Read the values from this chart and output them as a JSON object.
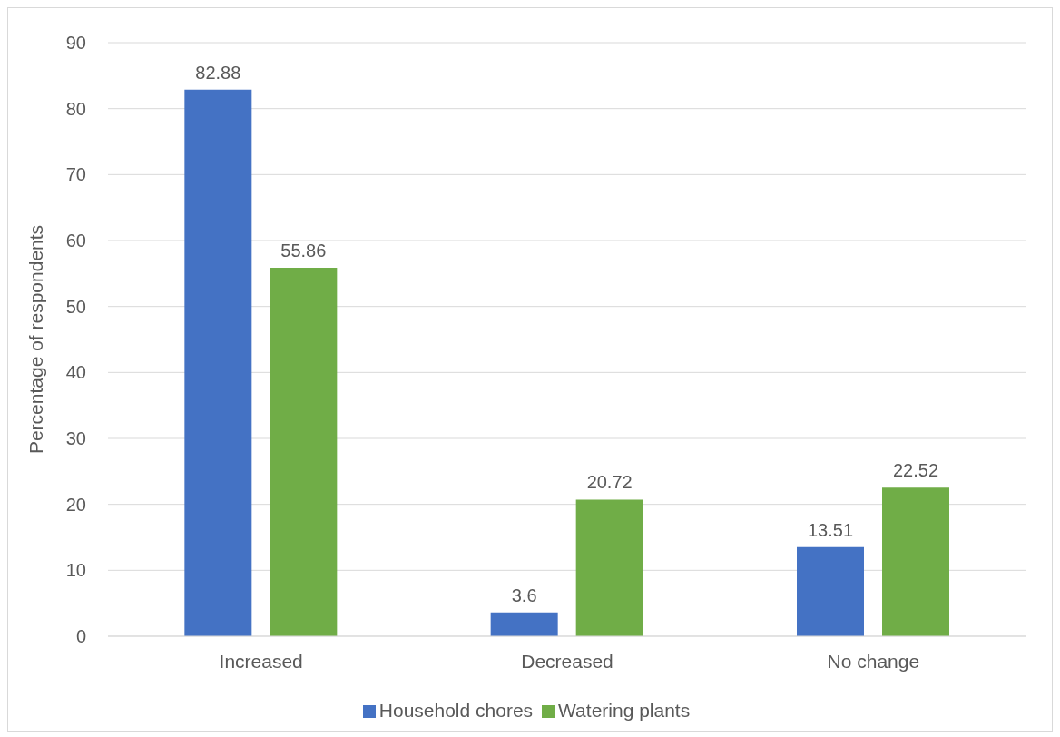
{
  "chart_data": {
    "type": "bar",
    "ylabel": "Percentage of respondents",
    "categories": [
      "Increased",
      "Decreased",
      "No change"
    ],
    "series": [
      {
        "name": "Household chores",
        "color": "#4472c4",
        "values": [
          82.88,
          3.6,
          13.51
        ]
      },
      {
        "name": "Watering plants",
        "color": "#70ad47",
        "values": [
          55.86,
          20.72,
          22.52
        ]
      }
    ],
    "ylim": [
      0,
      90
    ],
    "yticks": [
      0,
      10,
      20,
      30,
      40,
      50,
      60,
      70,
      80,
      90
    ],
    "grid": "y",
    "legend": "bottom",
    "data_labels": true
  }
}
